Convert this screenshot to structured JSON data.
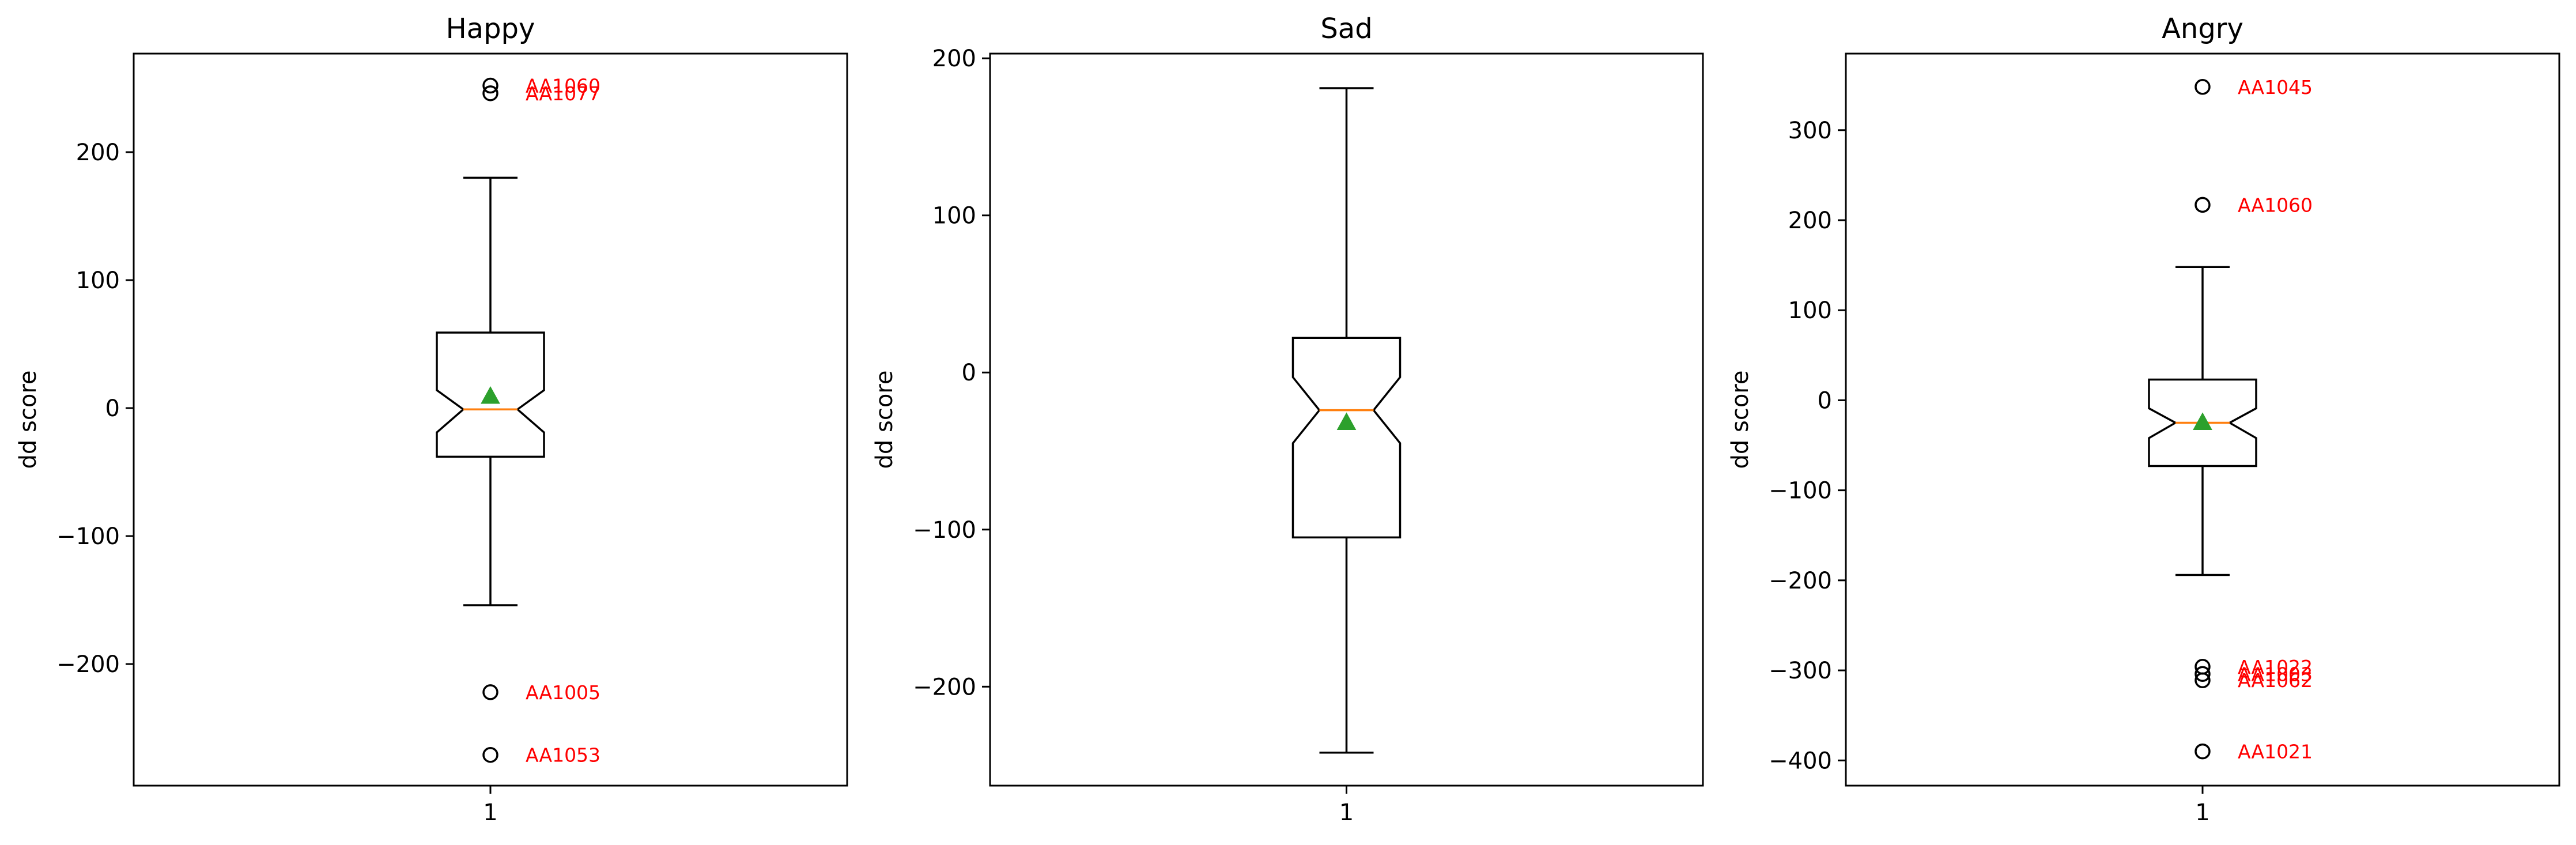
{
  "chart_data": [
    {
      "type": "box",
      "title": "Happy",
      "ylabel": "dd score",
      "xticks": [
        "1"
      ],
      "ylim": [
        -295,
        277
      ],
      "yticks": [
        -200,
        -100,
        0,
        100,
        200
      ],
      "yticklabels": [
        "−200",
        "−100",
        "0",
        "100",
        "200"
      ],
      "notched": true,
      "box": {
        "q1": -38,
        "median": -1,
        "q3": 59,
        "mean": 9,
        "whisker_low": -154,
        "whisker_high": 180,
        "notch_low": -19,
        "notch_high": 14
      },
      "outliers": [
        {
          "value": 252,
          "label": "AA1060"
        },
        {
          "value": 246,
          "label": "AA1077"
        },
        {
          "value": -222,
          "label": "AA1005"
        },
        {
          "value": -271,
          "label": "AA1053"
        }
      ]
    },
    {
      "type": "box",
      "title": "Sad",
      "ylabel": "dd score",
      "xticks": [
        "1"
      ],
      "ylim": [
        -263,
        203
      ],
      "yticks": [
        -200,
        -100,
        0,
        100,
        200
      ],
      "yticklabels": [
        "−200",
        "−100",
        "0",
        "100",
        "200"
      ],
      "notched": true,
      "box": {
        "q1": -105,
        "median": -24,
        "q3": 22,
        "mean": -32,
        "whisker_low": -242,
        "whisker_high": 181,
        "notch_low": -45,
        "notch_high": -3
      },
      "outliers": []
    },
    {
      "type": "box",
      "title": "Angry",
      "ylabel": "dd score",
      "xticks": [
        "1"
      ],
      "ylim": [
        -428,
        385
      ],
      "yticks": [
        -400,
        -300,
        -200,
        -100,
        0,
        100,
        200,
        300
      ],
      "yticklabels": [
        "−400",
        "−300",
        "−200",
        "−100",
        "0",
        "100",
        "200",
        "300"
      ],
      "notched": true,
      "box": {
        "q1": -73,
        "median": -25,
        "q3": 23,
        "mean": -25,
        "whisker_low": -194,
        "whisker_high": 148,
        "notch_low": -42,
        "notch_high": -9
      },
      "outliers": [
        {
          "value": 348,
          "label": "AA1045"
        },
        {
          "value": 217,
          "label": "AA1060"
        },
        {
          "value": -296,
          "label": "AA1022"
        },
        {
          "value": -304,
          "label": "AA1003"
        },
        {
          "value": -311,
          "label": "AA1062"
        },
        {
          "value": -390,
          "label": "AA1021"
        }
      ]
    }
  ],
  "colors": {
    "box": "#000000",
    "median": "#ff7f0e",
    "mean": "#2ca02c",
    "outlier_label": "#ff0000"
  }
}
